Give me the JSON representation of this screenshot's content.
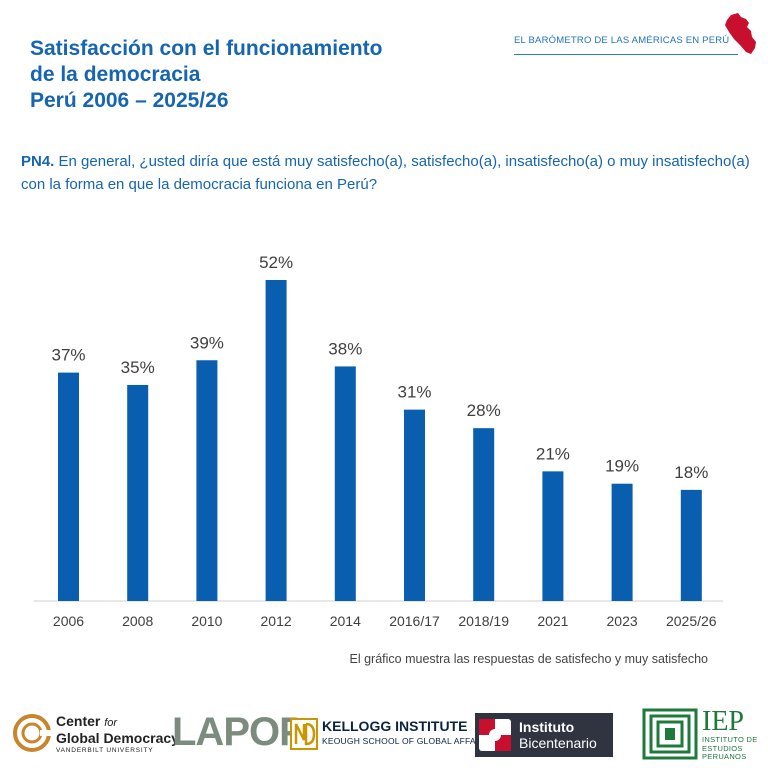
{
  "header": {
    "title_lines": [
      "Satisfacción con el funcionamiento",
      "de la democracia",
      "Perú 2006 – 2025/26"
    ],
    "brand": "EL  BARÓMETRO DE LAS AMÉRICAS  EN PERÚ"
  },
  "question": {
    "code": "PN4.",
    "text": " En general, ¿usted diría que está muy satisfecho(a), satisfecho(a), insatisfecho(a) o muy insatisfecho(a) con la forma en que la democracia funciona en Perú?"
  },
  "chart_data": {
    "type": "bar",
    "categories": [
      "2006",
      "2008",
      "2010",
      "2012",
      "2014",
      "2016/17",
      "2018/19",
      "2021",
      "2023",
      "2025/26"
    ],
    "values": [
      37,
      35,
      39,
      52,
      38,
      31,
      28,
      21,
      19,
      18
    ],
    "data_labels": [
      "37%",
      "35%",
      "39%",
      "52%",
      "38%",
      "31%",
      "28%",
      "21%",
      "19%",
      "18%"
    ],
    "unit": "%",
    "ylim": [
      0,
      52
    ],
    "grid": false,
    "legend": "none",
    "bar_color": "#0a5eaf"
  },
  "note": "El gráfico muestra las respuestas de satisfecho y muy satisfecho",
  "logos": {
    "cgd": {
      "line1": "Center",
      "for": "for",
      "line2": "Global Democracy",
      "line3": "VANDERBILT UNIVERSITY"
    },
    "lapop": "LAPOP",
    "kellogg": {
      "line1": "KELLOGG INSTITUTE",
      "line2": "KEOUGH SCHOOL OF GLOBAL AFFAIRS"
    },
    "bicentenario": {
      "line1": "Instituto",
      "line2": "Bicentenario"
    },
    "iep": {
      "line1": "IEP",
      "line2": "INSTITUTO DE",
      "line3": "ESTUDIOS",
      "line4": "PERUANOS"
    }
  }
}
